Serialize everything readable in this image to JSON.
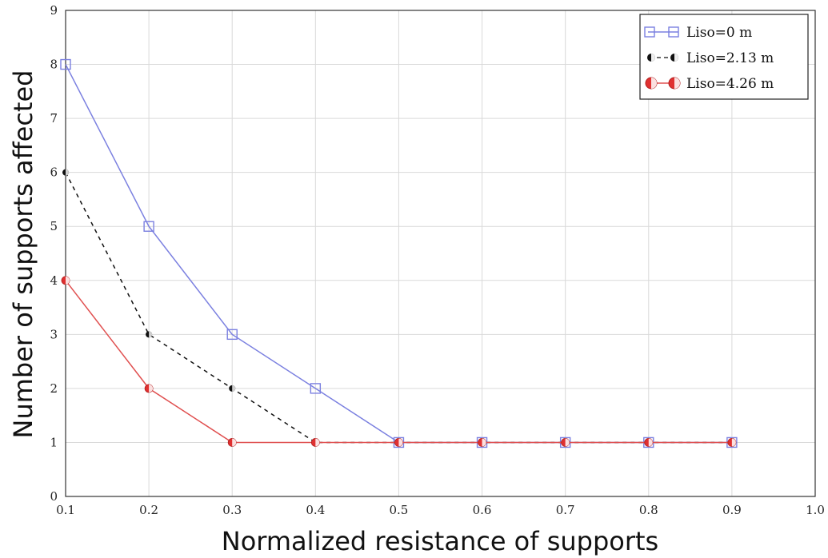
{
  "chart_data": {
    "type": "line",
    "xlabel": "Normalized resistance of supports",
    "ylabel": "Number of supports affected",
    "xlim": [
      0.1,
      1.0
    ],
    "ylim": [
      0,
      9
    ],
    "xticks": [
      "0.1",
      "0.2",
      "0.3",
      "0.4",
      "0.5",
      "0.6",
      "0.7",
      "0.8",
      "0.9",
      "1.0"
    ],
    "yticks": [
      "0",
      "1",
      "2",
      "3",
      "4",
      "5",
      "6",
      "7",
      "8",
      "9"
    ],
    "grid": true,
    "legend_position": "top-right",
    "x": [
      0.1,
      0.2,
      0.3,
      0.4,
      0.5,
      0.6,
      0.7,
      0.8,
      0.9
    ],
    "series": [
      {
        "name": "Liso=0 m",
        "values": [
          8,
          5,
          3,
          2,
          1,
          1,
          1,
          1,
          1
        ],
        "color": "#7b80e0",
        "marker": "square-open",
        "line": "solid"
      },
      {
        "name": "Liso=2.13 m",
        "values": [
          6,
          3,
          2,
          1,
          1,
          1,
          1,
          1,
          1
        ],
        "color": "#111111",
        "marker": "half-circle-black",
        "line": "dashed"
      },
      {
        "name": "Liso=4.26 m",
        "values": [
          4,
          2,
          1,
          1,
          1,
          1,
          1,
          1,
          1
        ],
        "color": "#e05050",
        "marker": "half-circle-red",
        "line": "solid"
      }
    ]
  }
}
